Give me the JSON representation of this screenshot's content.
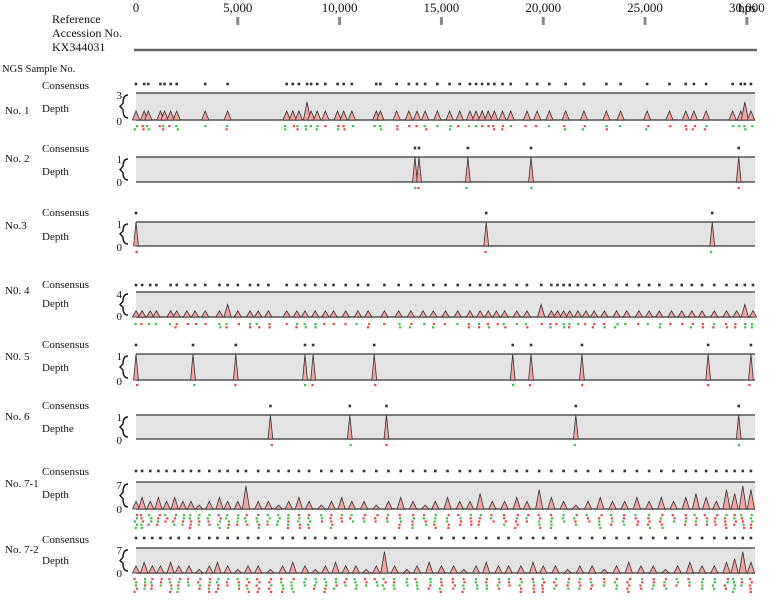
{
  "reference": {
    "line1": "Reference",
    "line2": "Accession No.",
    "line3": "KX344031"
  },
  "scale": {
    "ticks": [
      "0",
      "5,000",
      "10,000",
      "15,000",
      "20,000",
      "25,000",
      "30,000"
    ],
    "tick_values": [
      0,
      5000,
      10000,
      15000,
      20000,
      25000,
      30000
    ],
    "unit": "bps",
    "genome_length": 30400
  },
  "sample_header": "NGS Sample No.",
  "samples": [
    {
      "label": "No. 1",
      "consensus_label": "Consensus",
      "depth_label": "Depth",
      "max_tick": "3",
      "min_tick": "0",
      "max": 3,
      "peaks": [
        [
          0,
          1
        ],
        [
          400,
          1
        ],
        [
          600,
          1
        ],
        [
          1200,
          1
        ],
        [
          1400,
          1
        ],
        [
          1700,
          1
        ],
        [
          2000,
          1
        ],
        [
          3400,
          1
        ],
        [
          4500,
          1
        ],
        [
          7400,
          1
        ],
        [
          7700,
          1
        ],
        [
          8000,
          1
        ],
        [
          8400,
          2
        ],
        [
          8600,
          1
        ],
        [
          8900,
          1
        ],
        [
          9300,
          1
        ],
        [
          9900,
          1
        ],
        [
          10200,
          1
        ],
        [
          10600,
          1
        ],
        [
          11800,
          1
        ],
        [
          12000,
          1
        ],
        [
          12800,
          1
        ],
        [
          13400,
          1
        ],
        [
          13800,
          1
        ],
        [
          14200,
          1
        ],
        [
          14800,
          1
        ],
        [
          15400,
          1
        ],
        [
          15900,
          1
        ],
        [
          16400,
          1
        ],
        [
          16700,
          1
        ],
        [
          17000,
          1
        ],
        [
          17300,
          1
        ],
        [
          17600,
          1
        ],
        [
          18000,
          1
        ],
        [
          18400,
          1
        ],
        [
          19200,
          1
        ],
        [
          19700,
          1
        ],
        [
          20300,
          1
        ],
        [
          21100,
          1
        ],
        [
          22000,
          1
        ],
        [
          23100,
          1
        ],
        [
          23800,
          1
        ],
        [
          25100,
          1
        ],
        [
          26200,
          1
        ],
        [
          27000,
          1
        ],
        [
          27400,
          1
        ],
        [
          28000,
          1
        ],
        [
          29300,
          1
        ],
        [
          29700,
          1
        ],
        [
          29900,
          2
        ],
        [
          30200,
          1
        ]
      ]
    },
    {
      "label": "No. 2",
      "consensus_label": "Consensus",
      "depth_label": "Depth",
      "max_tick": "1",
      "min_tick": "0",
      "max": 1,
      "peaks": [
        [
          13700,
          1
        ],
        [
          13900,
          1
        ],
        [
          16300,
          1
        ],
        [
          19400,
          1
        ],
        [
          29600,
          1
        ]
      ]
    },
    {
      "label": "No.3",
      "consensus_label": "Consensus",
      "depth_label": "Depth",
      "max_tick": "1",
      "min_tick": "0",
      "max": 1,
      "peaks": [
        [
          0,
          1
        ],
        [
          17200,
          1
        ],
        [
          28300,
          1
        ]
      ]
    },
    {
      "label": "N0. 4",
      "consensus_label": "Consensus",
      "depth_label": "Depth",
      "max_tick": "4",
      "min_tick": "0",
      "max": 4,
      "peaks": [
        [
          0,
          1
        ],
        [
          300,
          1
        ],
        [
          700,
          1
        ],
        [
          1000,
          1
        ],
        [
          1700,
          1
        ],
        [
          2000,
          1
        ],
        [
          2500,
          1
        ],
        [
          2900,
          1
        ],
        [
          3400,
          1
        ],
        [
          4100,
          1
        ],
        [
          4500,
          2
        ],
        [
          5000,
          1
        ],
        [
          5600,
          1
        ],
        [
          6000,
          1
        ],
        [
          6500,
          1
        ],
        [
          7400,
          1
        ],
        [
          7900,
          1
        ],
        [
          8300,
          1
        ],
        [
          8800,
          1
        ],
        [
          9300,
          1
        ],
        [
          9700,
          1
        ],
        [
          10300,
          1
        ],
        [
          10900,
          1
        ],
        [
          11400,
          1
        ],
        [
          12200,
          1
        ],
        [
          12900,
          1
        ],
        [
          13500,
          1
        ],
        [
          14100,
          1
        ],
        [
          14600,
          1
        ],
        [
          15200,
          1
        ],
        [
          15800,
          1
        ],
        [
          16400,
          1
        ],
        [
          16900,
          1
        ],
        [
          17300,
          1
        ],
        [
          17700,
          1
        ],
        [
          18100,
          1
        ],
        [
          18700,
          1
        ],
        [
          19200,
          1
        ],
        [
          19900,
          2
        ],
        [
          20400,
          1
        ],
        [
          20700,
          1
        ],
        [
          21000,
          1
        ],
        [
          21300,
          1
        ],
        [
          21700,
          1
        ],
        [
          22100,
          1
        ],
        [
          22500,
          1
        ],
        [
          23000,
          1
        ],
        [
          23600,
          1
        ],
        [
          24100,
          1
        ],
        [
          24700,
          1
        ],
        [
          25200,
          1
        ],
        [
          25700,
          1
        ],
        [
          26300,
          1
        ],
        [
          26800,
          1
        ],
        [
          27300,
          1
        ],
        [
          27800,
          1
        ],
        [
          28400,
          1
        ],
        [
          29000,
          1
        ],
        [
          29500,
          1
        ],
        [
          29900,
          2
        ],
        [
          30300,
          1
        ]
      ]
    },
    {
      "label": "N0. 5",
      "consensus_label": "Consensus",
      "depth_label": "Depth",
      "max_tick": "1",
      "min_tick": "0",
      "max": 1,
      "peaks": [
        [
          0,
          1
        ],
        [
          2800,
          1
        ],
        [
          4900,
          1
        ],
        [
          8300,
          1
        ],
        [
          8700,
          1
        ],
        [
          11700,
          1
        ],
        [
          18500,
          1
        ],
        [
          19400,
          1
        ],
        [
          21900,
          1
        ],
        [
          28100,
          1
        ],
        [
          30200,
          1
        ]
      ]
    },
    {
      "label": "No. 6",
      "consensus_label": "Consensus",
      "depthe_label": "Depthe",
      "depth_label": "Depthe",
      "max_tick": "1",
      "min_tick": "0",
      "max": 1,
      "peaks": [
        [
          6600,
          1
        ],
        [
          10500,
          1
        ],
        [
          12300,
          1
        ],
        [
          21600,
          1
        ],
        [
          29600,
          1
        ]
      ]
    },
    {
      "label": "No. 7-1",
      "consensus_label": "Consensus",
      "depth_label": "Depth",
      "max_tick": "7",
      "min_tick": "0",
      "max": 7,
      "peaks": [
        [
          0,
          2
        ],
        [
          300,
          3
        ],
        [
          700,
          2
        ],
        [
          1100,
          3
        ],
        [
          1500,
          2
        ],
        [
          1900,
          3
        ],
        [
          2300,
          2
        ],
        [
          2700,
          2
        ],
        [
          3100,
          1
        ],
        [
          3600,
          2
        ],
        [
          4100,
          3
        ],
        [
          4500,
          2
        ],
        [
          5000,
          2
        ],
        [
          5400,
          6
        ],
        [
          6000,
          2
        ],
        [
          6500,
          2
        ],
        [
          7000,
          1
        ],
        [
          7500,
          2
        ],
        [
          8000,
          3
        ],
        [
          8500,
          2
        ],
        [
          9100,
          1
        ],
        [
          9600,
          2
        ],
        [
          10100,
          3
        ],
        [
          10600,
          2
        ],
        [
          11200,
          2
        ],
        [
          11800,
          1
        ],
        [
          12400,
          2
        ],
        [
          13000,
          3
        ],
        [
          13600,
          2
        ],
        [
          14200,
          1
        ],
        [
          14700,
          2
        ],
        [
          15300,
          3
        ],
        [
          15900,
          2
        ],
        [
          16400,
          2
        ],
        [
          16900,
          4
        ],
        [
          17500,
          2
        ],
        [
          18100,
          2
        ],
        [
          18700,
          3
        ],
        [
          19200,
          2
        ],
        [
          19800,
          5
        ],
        [
          20400,
          3
        ],
        [
          21000,
          2
        ],
        [
          21600,
          1
        ],
        [
          22200,
          2
        ],
        [
          22800,
          3
        ],
        [
          23400,
          2
        ],
        [
          24000,
          2
        ],
        [
          24600,
          3
        ],
        [
          25200,
          2
        ],
        [
          25800,
          3
        ],
        [
          26400,
          2
        ],
        [
          27000,
          3
        ],
        [
          27500,
          4
        ],
        [
          28000,
          3
        ],
        [
          28500,
          2
        ],
        [
          29000,
          5
        ],
        [
          29400,
          4
        ],
        [
          29800,
          6
        ],
        [
          30200,
          5
        ]
      ]
    },
    {
      "label": "No. 7-2",
      "consensus_label": "Consensus",
      "depth_label": "Depth",
      "max_tick": "7",
      "min_tick": "0",
      "max": 7,
      "peaks": [
        [
          0,
          2
        ],
        [
          400,
          3
        ],
        [
          800,
          2
        ],
        [
          1200,
          2
        ],
        [
          1700,
          3
        ],
        [
          2100,
          2
        ],
        [
          2600,
          2
        ],
        [
          3100,
          1
        ],
        [
          3600,
          2
        ],
        [
          4000,
          3
        ],
        [
          4500,
          2
        ],
        [
          5000,
          1
        ],
        [
          5500,
          2
        ],
        [
          6000,
          2
        ],
        [
          6600,
          1
        ],
        [
          7200,
          2
        ],
        [
          7700,
          3
        ],
        [
          8300,
          2
        ],
        [
          8800,
          1
        ],
        [
          9300,
          2
        ],
        [
          9800,
          3
        ],
        [
          10300,
          2
        ],
        [
          10800,
          2
        ],
        [
          11300,
          1
        ],
        [
          11800,
          2
        ],
        [
          12200,
          6
        ],
        [
          12700,
          2
        ],
        [
          13300,
          1
        ],
        [
          13800,
          2
        ],
        [
          14400,
          3
        ],
        [
          15000,
          2
        ],
        [
          15600,
          2
        ],
        [
          16100,
          1
        ],
        [
          16700,
          2
        ],
        [
          17200,
          3
        ],
        [
          17800,
          2
        ],
        [
          18300,
          2
        ],
        [
          18900,
          2
        ],
        [
          19500,
          3
        ],
        [
          20000,
          2
        ],
        [
          20600,
          2
        ],
        [
          21200,
          1
        ],
        [
          21800,
          2
        ],
        [
          22400,
          2
        ],
        [
          23000,
          1
        ],
        [
          23600,
          2
        ],
        [
          24200,
          3
        ],
        [
          24800,
          2
        ],
        [
          25400,
          2
        ],
        [
          26000,
          1
        ],
        [
          26600,
          2
        ],
        [
          27200,
          3
        ],
        [
          27800,
          2
        ],
        [
          28400,
          2
        ],
        [
          29000,
          3
        ],
        [
          29400,
          4
        ],
        [
          29800,
          6
        ],
        [
          30200,
          3
        ]
      ]
    }
  ],
  "colors": {
    "band": "#e3e3e3",
    "peak_fill": "#f4a3a3",
    "peak_stroke": "#333333",
    "axis_line": "#555555",
    "variant_red": "#e84545",
    "variant_green": "#3fbf4a",
    "variant_blue": "#3a3ad8",
    "consensus_mark": "#333333"
  }
}
